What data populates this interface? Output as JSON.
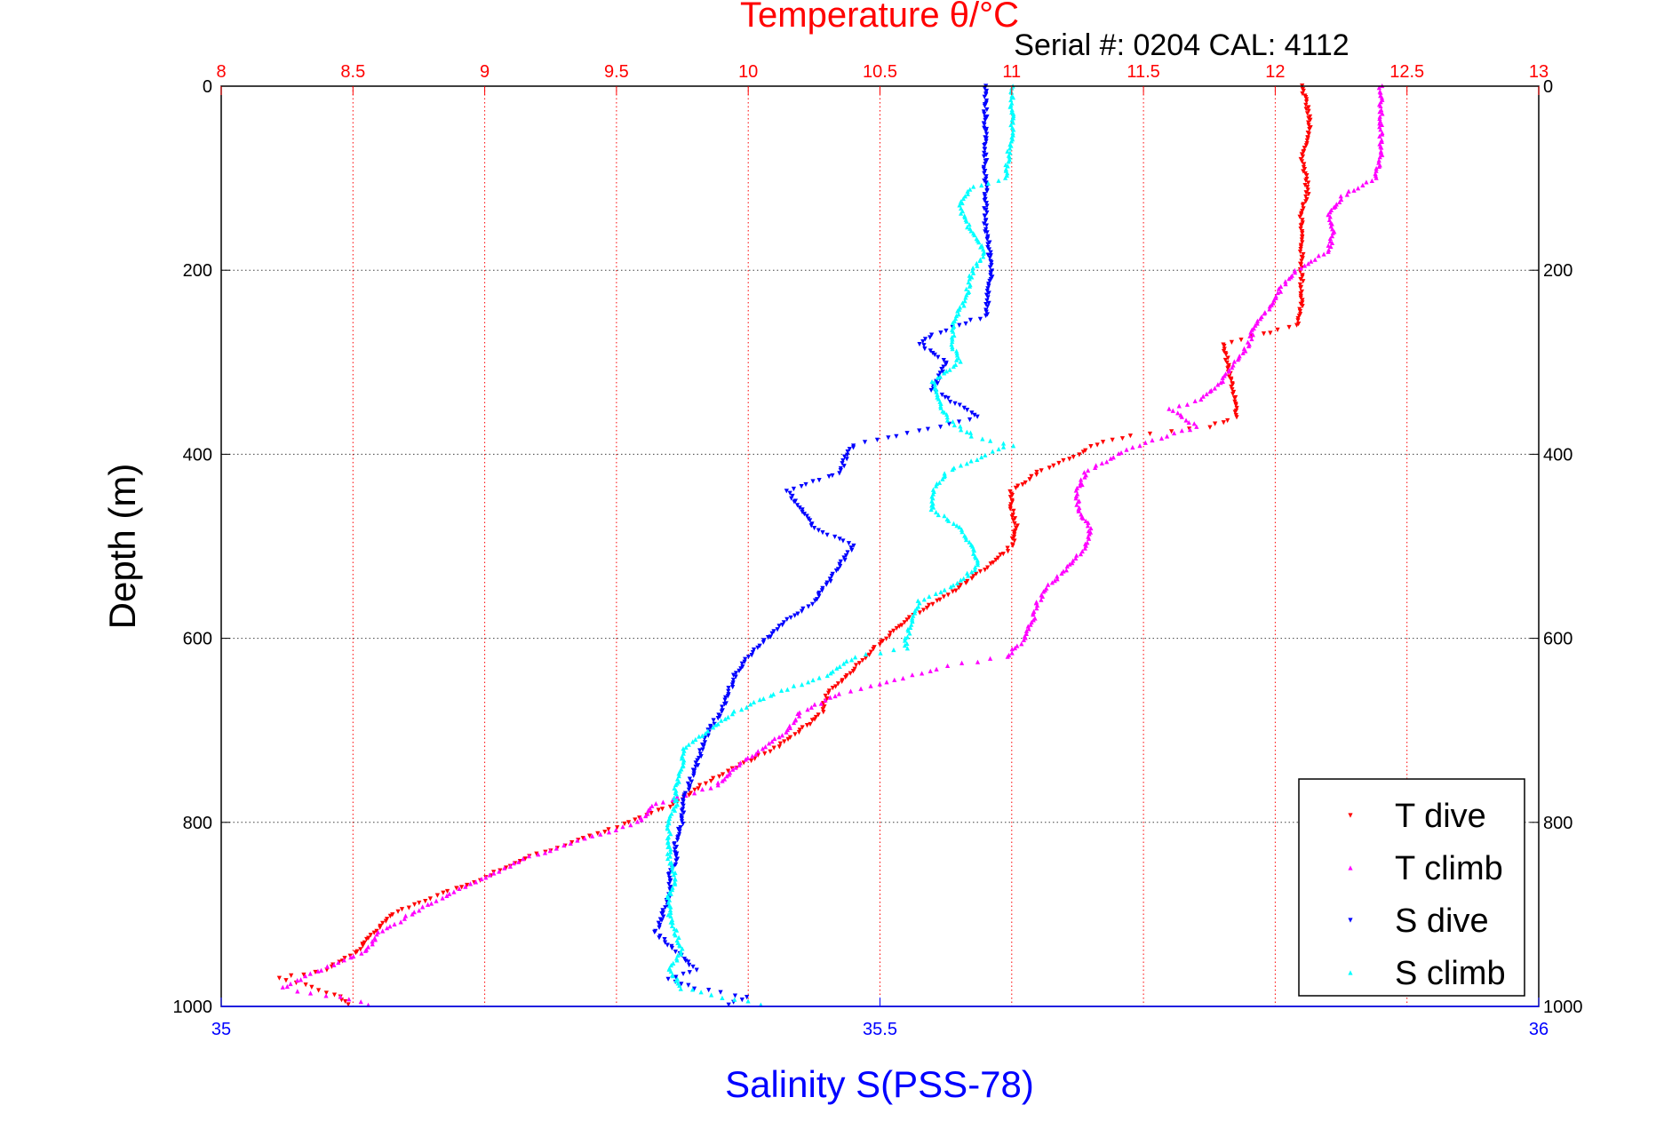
{
  "chart_data": {
    "type": "scatter",
    "title": "Temperature θ/°C",
    "subtitle": "Serial #: 0204  CAL: 4112",
    "ylabel": "Depth (m)",
    "xlabel_bottom": "Salinity S(PSS-78)",
    "ylim": [
      0,
      1000
    ],
    "y_inverted": true,
    "yticks": [
      0,
      200,
      400,
      600,
      800,
      1000
    ],
    "ytick_labels": [
      "0",
      "200",
      "400",
      "600",
      "800",
      "1000"
    ],
    "temp_axis": {
      "lim": [
        8,
        13
      ],
      "ticks": [
        8,
        8.5,
        9,
        9.5,
        10,
        10.5,
        11,
        11.5,
        12,
        12.5,
        13
      ],
      "tick_labels": [
        "8",
        "8.5",
        "9",
        "9.5",
        "10",
        "10.5",
        "11",
        "11.5",
        "12",
        "12.5",
        "13"
      ]
    },
    "sal_axis": {
      "lim": [
        35,
        36
      ],
      "ticks": [
        35,
        35.5,
        36
      ],
      "tick_labels": [
        "35",
        "35.5",
        "36"
      ]
    },
    "grid": true,
    "legend_position": "bottom-right",
    "colors": {
      "temp_axis": "#ff0000",
      "sal_axis": "#0000ff",
      "grid": "#404040"
    },
    "series": [
      {
        "name": "T dive",
        "axis": "temperature",
        "color": "#ff0000",
        "marker": "triangle-down",
        "points": [
          [
            0,
            12.1
          ],
          [
            20,
            12.12
          ],
          [
            40,
            12.13
          ],
          [
            60,
            12.12
          ],
          [
            80,
            12.1
          ],
          [
            100,
            12.12
          ],
          [
            120,
            12.12
          ],
          [
            140,
            12.1
          ],
          [
            160,
            12.1
          ],
          [
            180,
            12.1
          ],
          [
            200,
            12.1
          ],
          [
            220,
            12.1
          ],
          [
            240,
            12.1
          ],
          [
            260,
            12.08
          ],
          [
            270,
            11.95
          ],
          [
            280,
            11.8
          ],
          [
            300,
            11.82
          ],
          [
            320,
            11.83
          ],
          [
            340,
            11.85
          ],
          [
            360,
            11.85
          ],
          [
            370,
            11.75
          ],
          [
            380,
            11.45
          ],
          [
            390,
            11.32
          ],
          [
            400,
            11.25
          ],
          [
            420,
            11.1
          ],
          [
            440,
            11.0
          ],
          [
            460,
            11.0
          ],
          [
            480,
            11.02
          ],
          [
            500,
            11.0
          ],
          [
            520,
            10.92
          ],
          [
            540,
            10.82
          ],
          [
            560,
            10.72
          ],
          [
            580,
            10.6
          ],
          [
            600,
            10.52
          ],
          [
            620,
            10.45
          ],
          [
            640,
            10.38
          ],
          [
            660,
            10.3
          ],
          [
            680,
            10.28
          ],
          [
            700,
            10.2
          ],
          [
            720,
            10.1
          ],
          [
            740,
            9.95
          ],
          [
            760,
            9.82
          ],
          [
            780,
            9.72
          ],
          [
            800,
            9.55
          ],
          [
            820,
            9.35
          ],
          [
            840,
            9.15
          ],
          [
            860,
            9.0
          ],
          [
            880,
            8.82
          ],
          [
            900,
            8.65
          ],
          [
            920,
            8.58
          ],
          [
            940,
            8.52
          ],
          [
            960,
            8.4
          ],
          [
            970,
            8.22
          ],
          [
            980,
            8.35
          ],
          [
            990,
            8.45
          ],
          [
            1000,
            8.5
          ]
        ]
      },
      {
        "name": "T climb",
        "axis": "temperature",
        "color": "#ff00ff",
        "marker": "triangle-up",
        "points": [
          [
            0,
            12.4
          ],
          [
            20,
            12.4
          ],
          [
            40,
            12.4
          ],
          [
            60,
            12.4
          ],
          [
            80,
            12.4
          ],
          [
            100,
            12.38
          ],
          [
            110,
            12.32
          ],
          [
            120,
            12.25
          ],
          [
            140,
            12.2
          ],
          [
            160,
            12.22
          ],
          [
            180,
            12.2
          ],
          [
            200,
            12.08
          ],
          [
            220,
            12.02
          ],
          [
            240,
            11.98
          ],
          [
            260,
            11.92
          ],
          [
            280,
            11.9
          ],
          [
            300,
            11.85
          ],
          [
            320,
            11.8
          ],
          [
            340,
            11.72
          ],
          [
            350,
            11.6
          ],
          [
            360,
            11.65
          ],
          [
            370,
            11.7
          ],
          [
            390,
            11.48
          ],
          [
            400,
            11.4
          ],
          [
            420,
            11.28
          ],
          [
            440,
            11.25
          ],
          [
            460,
            11.25
          ],
          [
            480,
            11.3
          ],
          [
            500,
            11.28
          ],
          [
            520,
            11.22
          ],
          [
            540,
            11.15
          ],
          [
            560,
            11.1
          ],
          [
            580,
            11.08
          ],
          [
            600,
            11.05
          ],
          [
            620,
            10.98
          ],
          [
            630,
            10.75
          ],
          [
            640,
            10.62
          ],
          [
            650,
            10.5
          ],
          [
            660,
            10.35
          ],
          [
            680,
            10.2
          ],
          [
            700,
            10.15
          ],
          [
            720,
            10.05
          ],
          [
            740,
            9.95
          ],
          [
            760,
            9.88
          ],
          [
            780,
            9.65
          ],
          [
            800,
            9.58
          ],
          [
            820,
            9.35
          ],
          [
            840,
            9.15
          ],
          [
            860,
            9.0
          ],
          [
            880,
            8.85
          ],
          [
            900,
            8.72
          ],
          [
            920,
            8.6
          ],
          [
            940,
            8.55
          ],
          [
            960,
            8.38
          ],
          [
            980,
            8.23
          ],
          [
            990,
            8.45
          ],
          [
            1000,
            8.6
          ]
        ]
      },
      {
        "name": "S dive",
        "axis": "salinity",
        "color": "#0000ff",
        "marker": "triangle-down",
        "points": [
          [
            0,
            35.58
          ],
          [
            50,
            35.58
          ],
          [
            100,
            35.58
          ],
          [
            150,
            35.58
          ],
          [
            200,
            35.585
          ],
          [
            250,
            35.58
          ],
          [
            270,
            35.54
          ],
          [
            280,
            35.53
          ],
          [
            300,
            35.55
          ],
          [
            330,
            35.54
          ],
          [
            360,
            35.575
          ],
          [
            375,
            35.53
          ],
          [
            390,
            35.48
          ],
          [
            400,
            35.475
          ],
          [
            420,
            35.47
          ],
          [
            440,
            35.43
          ],
          [
            460,
            35.44
          ],
          [
            480,
            35.45
          ],
          [
            500,
            35.48
          ],
          [
            520,
            35.47
          ],
          [
            540,
            35.46
          ],
          [
            560,
            35.45
          ],
          [
            580,
            35.43
          ],
          [
            600,
            35.415
          ],
          [
            620,
            35.4
          ],
          [
            640,
            35.39
          ],
          [
            660,
            35.385
          ],
          [
            680,
            35.38
          ],
          [
            700,
            35.37
          ],
          [
            720,
            35.365
          ],
          [
            740,
            35.36
          ],
          [
            760,
            35.355
          ],
          [
            780,
            35.35
          ],
          [
            800,
            35.35
          ],
          [
            820,
            35.345
          ],
          [
            840,
            35.345
          ],
          [
            860,
            35.34
          ],
          [
            880,
            35.34
          ],
          [
            900,
            35.335
          ],
          [
            920,
            35.33
          ],
          [
            940,
            35.345
          ],
          [
            960,
            35.36
          ],
          [
            970,
            35.34
          ],
          [
            980,
            35.36
          ],
          [
            990,
            35.4
          ],
          [
            1000,
            35.38
          ]
        ]
      },
      {
        "name": "S climb",
        "axis": "salinity",
        "color": "#00ffff",
        "marker": "triangle-up",
        "points": [
          [
            0,
            35.6
          ],
          [
            50,
            35.6
          ],
          [
            100,
            35.595
          ],
          [
            110,
            35.57
          ],
          [
            130,
            35.56
          ],
          [
            160,
            35.57
          ],
          [
            180,
            35.58
          ],
          [
            200,
            35.57
          ],
          [
            230,
            35.565
          ],
          [
            260,
            35.555
          ],
          [
            280,
            35.555
          ],
          [
            300,
            35.56
          ],
          [
            320,
            35.54
          ],
          [
            340,
            35.545
          ],
          [
            360,
            35.55
          ],
          [
            380,
            35.57
          ],
          [
            390,
            35.6
          ],
          [
            400,
            35.58
          ],
          [
            420,
            35.55
          ],
          [
            440,
            35.54
          ],
          [
            460,
            35.54
          ],
          [
            480,
            35.56
          ],
          [
            500,
            35.57
          ],
          [
            520,
            35.575
          ],
          [
            540,
            35.56
          ],
          [
            560,
            35.53
          ],
          [
            580,
            35.525
          ],
          [
            600,
            35.52
          ],
          [
            610,
            35.52
          ],
          [
            620,
            35.48
          ],
          [
            640,
            35.46
          ],
          [
            660,
            35.42
          ],
          [
            680,
            35.39
          ],
          [
            700,
            35.37
          ],
          [
            720,
            35.35
          ],
          [
            740,
            35.35
          ],
          [
            760,
            35.345
          ],
          [
            780,
            35.345
          ],
          [
            800,
            35.34
          ],
          [
            820,
            35.34
          ],
          [
            840,
            35.34
          ],
          [
            860,
            35.345
          ],
          [
            880,
            35.34
          ],
          [
            900,
            35.34
          ],
          [
            920,
            35.345
          ],
          [
            940,
            35.35
          ],
          [
            960,
            35.34
          ],
          [
            980,
            35.35
          ],
          [
            990,
            35.38
          ],
          [
            1000,
            35.42
          ]
        ]
      }
    ]
  }
}
